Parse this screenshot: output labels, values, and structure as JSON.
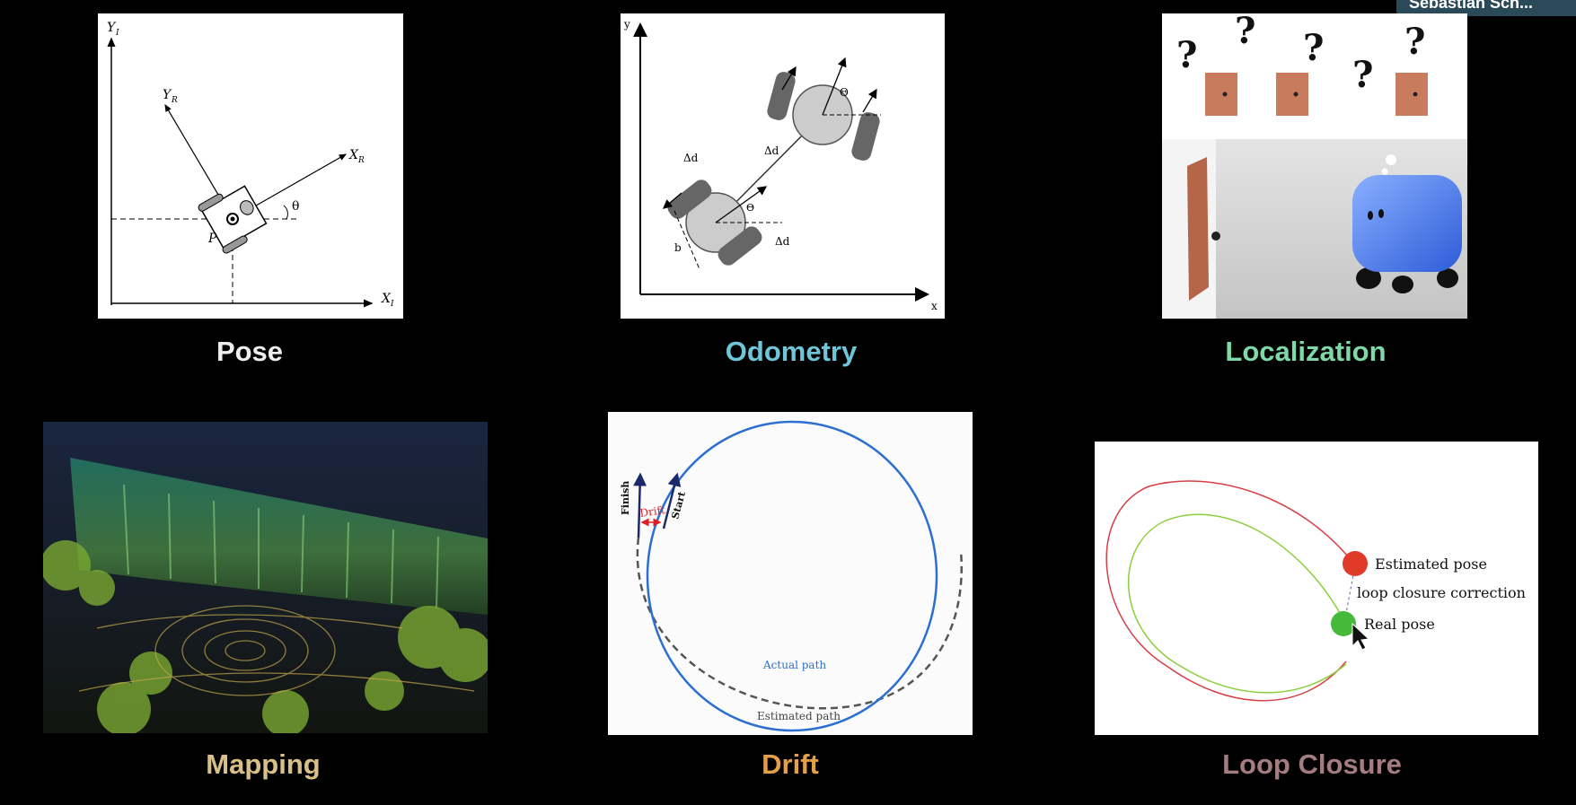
{
  "speaker": {
    "name": "Sebastian Sch..."
  },
  "slide": {
    "topics": [
      {
        "id": "pose",
        "label": "Pose",
        "color": "#eeeeee"
      },
      {
        "id": "odometry",
        "label": "Odometry",
        "color": "#6ec6d8"
      },
      {
        "id": "localization",
        "label": "Localization",
        "color": "#7fd8a8"
      },
      {
        "id": "mapping",
        "label": "Mapping",
        "color": "#d9c089"
      },
      {
        "id": "drift",
        "label": "Drift",
        "color": "#e3a046"
      },
      {
        "id": "loop_closure",
        "label": "Loop Closure",
        "color": "#a57c80"
      }
    ],
    "pose_figure": {
      "yi": "Y",
      "yi_sub": "I",
      "xi": "X",
      "xi_sub": "I",
      "yr": "Y",
      "yr_sub": "R",
      "xr": "X",
      "xr_sub": "R",
      "theta": "θ",
      "p": "P"
    },
    "odometry_figure": {
      "y": "y",
      "x": "x",
      "dd": "Δd",
      "b": "b",
      "dr_top": "Δd",
      "dr_bottom": "Δd",
      "theta_k": "Θ",
      "theta_k1": "Θ"
    },
    "localization_figure": {
      "marks": [
        "?",
        "?",
        "?",
        "?",
        "?"
      ]
    },
    "drift_figure": {
      "finish": "Finish",
      "start": "Start",
      "drift": "Drift",
      "actual_path": "Actual path",
      "estimated_path": "Estimated path"
    },
    "loop_closure_figure": {
      "estimated_pose": "Estimated pose",
      "correction": "loop closure correction",
      "real_pose": "Real pose"
    }
  }
}
